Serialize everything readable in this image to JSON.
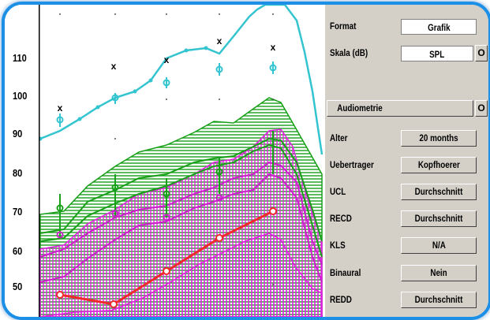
{
  "y_axis": {
    "ticks": [
      "110",
      "100",
      "90",
      "80",
      "70",
      "60",
      "50"
    ]
  },
  "plot": {
    "marker_glyph": "x",
    "colors": {
      "ucl": "#33c4d0",
      "green_band": "#18a018",
      "magenta_band": "#e020e0",
      "red_line": "#ee2a2a"
    }
  },
  "settings": {
    "format": {
      "label": "Format",
      "value": "Grafik"
    },
    "skala": {
      "label": "Skala (dB)",
      "value": "SPL"
    },
    "audiometrie": {
      "label": "Audiometrie"
    },
    "alter": {
      "label": "Alter",
      "value": "20 months"
    },
    "uebertrager": {
      "label": "Uebertrager",
      "value": "Kopfhoerer"
    },
    "ucl": {
      "label": "UCL",
      "value": "Durchschnitt"
    },
    "recd": {
      "label": "RECD",
      "value": "Durchschnitt"
    },
    "kls": {
      "label": "KLS",
      "value": "N/A"
    },
    "binaural": {
      "label": "Binaural",
      "value": "Nein"
    },
    "redd": {
      "label": "REDD",
      "value": "Durchschnitt"
    }
  }
}
